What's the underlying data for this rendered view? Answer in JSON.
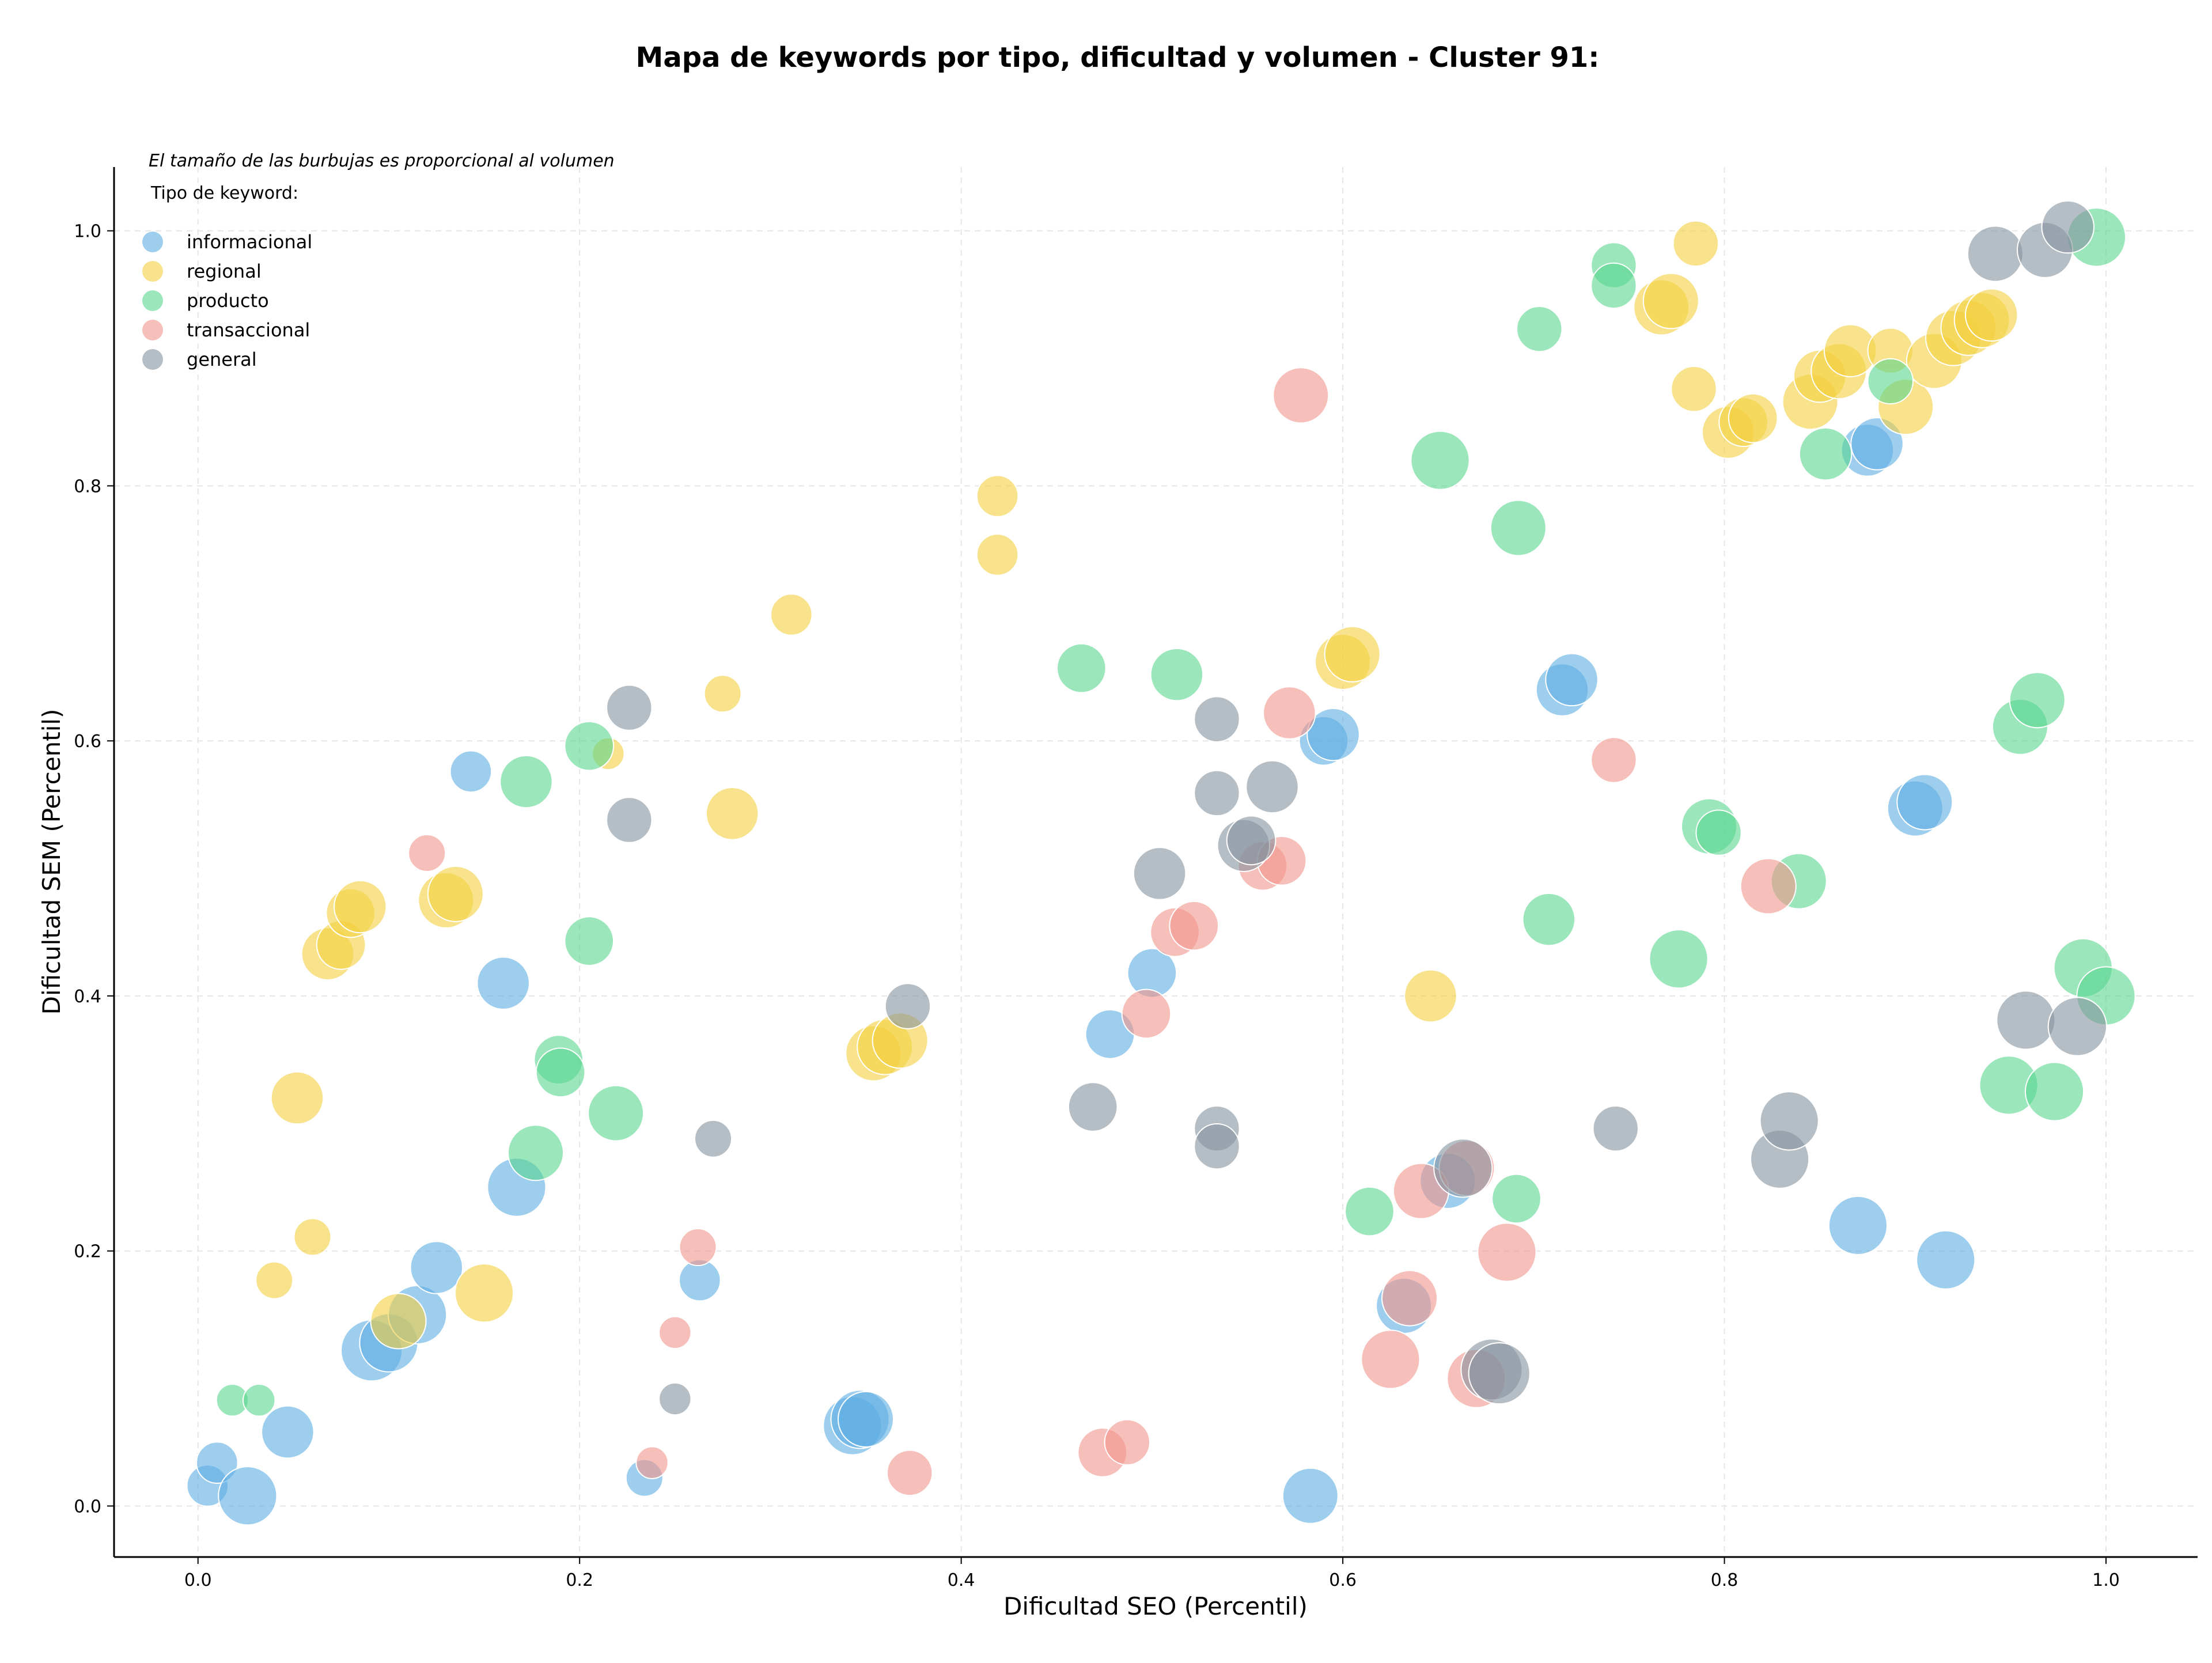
{
  "chart_data": {
    "type": "scatter",
    "title": "Mapa de keywords por tipo, dificultad y volumen - Cluster 91:",
    "xlabel": "Dificultad SEO (Percentil)",
    "ylabel": "Dificultad SEM (Percentil)",
    "xlim": [
      -0.044,
      1.048
    ],
    "ylim": [
      -0.04,
      1.05
    ],
    "x_ticks": [
      0.0,
      0.2,
      0.4,
      0.6,
      0.8,
      1.0
    ],
    "y_ticks": [
      0.0,
      0.2,
      0.4,
      0.6,
      0.8,
      1.0
    ],
    "x_tick_labels": [
      "0.0",
      "0.2",
      "0.4",
      "0.6",
      "0.8",
      "1.0"
    ],
    "y_tick_labels": [
      "0.0",
      "0.2",
      "0.4",
      "0.6",
      "0.8",
      "1.0"
    ],
    "grid": true,
    "legend_position": "top-left",
    "annotation": "El tamaño de las burbujas es proporcional al volumen",
    "legend_title": "Tipo de keyword:",
    "series": [
      {
        "name": "informacional",
        "color": "#5DADE2",
        "points": [
          [
            0.005,
            0.016,
            5
          ],
          [
            0.01,
            0.034,
            5
          ],
          [
            0.026,
            0.008,
            10
          ],
          [
            0.047,
            0.058,
            8
          ],
          [
            0.091,
            0.122,
            11
          ],
          [
            0.1,
            0.128,
            10
          ],
          [
            0.115,
            0.15,
            10
          ],
          [
            0.125,
            0.187,
            8
          ],
          [
            0.143,
            0.576,
            5
          ],
          [
            0.16,
            0.41,
            8
          ],
          [
            0.167,
            0.25,
            10
          ],
          [
            0.234,
            0.022,
            4
          ],
          [
            0.263,
            0.177,
            5
          ],
          [
            0.343,
            0.063,
            10
          ],
          [
            0.347,
            0.068,
            10
          ],
          [
            0.35,
            0.068,
            9
          ],
          [
            0.478,
            0.37,
            7
          ],
          [
            0.5,
            0.418,
            7
          ],
          [
            0.59,
            0.6,
            7
          ],
          [
            0.595,
            0.605,
            8
          ],
          [
            0.583,
            0.008,
            9
          ],
          [
            0.632,
            0.157,
            9
          ],
          [
            0.655,
            0.255,
            9
          ],
          [
            0.715,
            0.64,
            8
          ],
          [
            0.72,
            0.648,
            8
          ],
          [
            0.87,
            0.22,
            10
          ],
          [
            0.875,
            0.828,
            8
          ],
          [
            0.88,
            0.833,
            8
          ],
          [
            0.9,
            0.547,
            9
          ],
          [
            0.905,
            0.552,
            9
          ],
          [
            0.916,
            0.193,
            10
          ]
        ]
      },
      {
        "name": "regional",
        "color": "#F4D03F",
        "points": [
          [
            0.04,
            0.177,
            4
          ],
          [
            0.052,
            0.32,
            8
          ],
          [
            0.06,
            0.211,
            4
          ],
          [
            0.068,
            0.433,
            8
          ],
          [
            0.075,
            0.44,
            7
          ],
          [
            0.08,
            0.465,
            7
          ],
          [
            0.085,
            0.47,
            8
          ],
          [
            0.105,
            0.145,
            9
          ],
          [
            0.13,
            0.475,
            9
          ],
          [
            0.135,
            0.48,
            9
          ],
          [
            0.15,
            0.167,
            10
          ],
          [
            0.215,
            0.59,
            3
          ],
          [
            0.275,
            0.637,
            4
          ],
          [
            0.28,
            0.543,
            8
          ],
          [
            0.311,
            0.699,
            5
          ],
          [
            0.354,
            0.355,
            9
          ],
          [
            0.36,
            0.36,
            9
          ],
          [
            0.368,
            0.365,
            9
          ],
          [
            0.419,
            0.792,
            5
          ],
          [
            0.419,
            0.746,
            5
          ],
          [
            0.6,
            0.662,
            9
          ],
          [
            0.605,
            0.668,
            9
          ],
          [
            0.646,
            0.4,
            8
          ],
          [
            0.767,
            0.94,
            9
          ],
          [
            0.772,
            0.945,
            9
          ],
          [
            0.784,
            0.876,
            6
          ],
          [
            0.785,
            0.99,
            6
          ],
          [
            0.802,
            0.842,
            8
          ],
          [
            0.81,
            0.85,
            7
          ],
          [
            0.815,
            0.853,
            7
          ],
          [
            0.845,
            0.866,
            9
          ],
          [
            0.85,
            0.886,
            8
          ],
          [
            0.86,
            0.89,
            9
          ],
          [
            0.866,
            0.906,
            8
          ],
          [
            0.887,
            0.906,
            6
          ],
          [
            0.895,
            0.862,
            9
          ],
          [
            0.91,
            0.898,
            9
          ],
          [
            0.92,
            0.916,
            9
          ],
          [
            0.928,
            0.924,
            9
          ],
          [
            0.935,
            0.93,
            9
          ],
          [
            0.94,
            0.934,
            8
          ]
        ]
      },
      {
        "name": "producto",
        "color": "#58D68D",
        "points": [
          [
            0.018,
            0.083,
            3
          ],
          [
            0.032,
            0.083,
            3
          ],
          [
            0.172,
            0.568,
            8
          ],
          [
            0.177,
            0.277,
            9
          ],
          [
            0.189,
            0.35,
            7
          ],
          [
            0.19,
            0.34,
            7
          ],
          [
            0.205,
            0.596,
            7
          ],
          [
            0.205,
            0.443,
            7
          ],
          [
            0.219,
            0.308,
            9
          ],
          [
            0.463,
            0.657,
            7
          ],
          [
            0.513,
            0.652,
            8
          ],
          [
            0.614,
            0.231,
            7
          ],
          [
            0.651,
            0.82,
            10
          ],
          [
            0.691,
            0.241,
            7
          ],
          [
            0.692,
            0.767,
            9
          ],
          [
            0.703,
            0.923,
            6
          ],
          [
            0.708,
            0.46,
            8
          ],
          [
            0.742,
            0.973,
            6
          ],
          [
            0.742,
            0.957,
            6
          ],
          [
            0.776,
            0.429,
            10
          ],
          [
            0.792,
            0.533,
            9
          ],
          [
            0.797,
            0.528,
            6
          ],
          [
            0.839,
            0.49,
            9
          ],
          [
            0.853,
            0.825,
            8
          ],
          [
            0.887,
            0.882,
            6
          ],
          [
            0.949,
            0.33,
            10
          ],
          [
            0.955,
            0.611,
            9
          ],
          [
            0.964,
            0.632,
            9
          ],
          [
            0.973,
            0.325,
            10
          ],
          [
            0.988,
            0.422,
            10
          ],
          [
            0.995,
            0.995,
            10
          ],
          [
            1.0,
            0.4,
            10
          ]
        ]
      },
      {
        "name": "transaccional",
        "color": "#F1948A",
        "points": [
          [
            0.12,
            0.512,
            4
          ],
          [
            0.238,
            0.034,
            3
          ],
          [
            0.25,
            0.136,
            3
          ],
          [
            0.262,
            0.203,
            4
          ],
          [
            0.373,
            0.026,
            6
          ],
          [
            0.474,
            0.042,
            7
          ],
          [
            0.487,
            0.05,
            6
          ],
          [
            0.497,
            0.386,
            7
          ],
          [
            0.512,
            0.45,
            7
          ],
          [
            0.522,
            0.455,
            7
          ],
          [
            0.558,
            0.502,
            7
          ],
          [
            0.568,
            0.506,
            7
          ],
          [
            0.572,
            0.622,
            8
          ],
          [
            0.578,
            0.871,
            9
          ],
          [
            0.625,
            0.115,
            10
          ],
          [
            0.635,
            0.163,
            9
          ],
          [
            0.641,
            0.247,
            9
          ],
          [
            0.665,
            0.265,
            9
          ],
          [
            0.67,
            0.1,
            10
          ],
          [
            0.686,
            0.199,
            10
          ],
          [
            0.742,
            0.585,
            6
          ],
          [
            0.823,
            0.486,
            9
          ]
        ]
      },
      {
        "name": "general",
        "color": "#85929E",
        "points": [
          [
            0.226,
            0.626,
            6
          ],
          [
            0.226,
            0.538,
            6
          ],
          [
            0.25,
            0.084,
            3
          ],
          [
            0.27,
            0.288,
            4
          ],
          [
            0.372,
            0.392,
            6
          ],
          [
            0.469,
            0.313,
            7
          ],
          [
            0.504,
            0.496,
            8
          ],
          [
            0.534,
            0.617,
            6
          ],
          [
            0.534,
            0.559,
            6
          ],
          [
            0.534,
            0.296,
            6
          ],
          [
            0.534,
            0.282,
            6
          ],
          [
            0.548,
            0.518,
            8
          ],
          [
            0.552,
            0.522,
            7
          ],
          [
            0.563,
            0.564,
            8
          ],
          [
            0.663,
            0.265,
            10
          ],
          [
            0.678,
            0.107,
            11
          ],
          [
            0.682,
            0.104,
            11
          ],
          [
            0.743,
            0.296,
            6
          ],
          [
            0.829,
            0.272,
            10
          ],
          [
            0.834,
            0.302,
            10
          ],
          [
            0.942,
            0.982,
            9
          ],
          [
            0.958,
            0.381,
            10
          ],
          [
            0.968,
            0.985,
            9
          ],
          [
            0.98,
            1.003,
            8
          ],
          [
            0.985,
            0.376,
            10
          ]
        ]
      }
    ]
  }
}
